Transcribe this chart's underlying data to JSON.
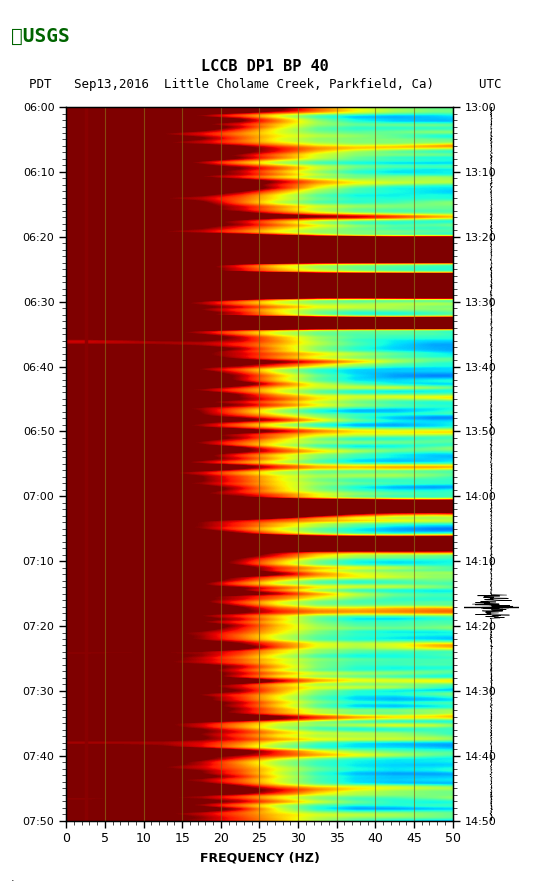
{
  "title_line1": "LCCB DP1 BP 40",
  "title_line2": "PDT   Sep13,2016  Little Cholame Creek, Parkfield, Ca)      UTC",
  "xlabel": "FREQUENCY (HZ)",
  "ylabel_left": "PDT",
  "ylabel_right": "UTC",
  "freq_min": 0,
  "freq_max": 50,
  "freq_ticks": [
    0,
    5,
    10,
    15,
    20,
    25,
    30,
    35,
    40,
    45,
    50
  ],
  "time_start_pdt": "06:00",
  "time_end_pdt": "07:50",
  "time_start_utc": "13:00",
  "time_end_utc": "14:50",
  "pdt_labels": [
    "06:00",
    "06:10",
    "06:20",
    "06:30",
    "06:40",
    "06:50",
    "07:00",
    "07:10",
    "07:20",
    "07:30",
    "07:40",
    "07:50"
  ],
  "utc_labels": [
    "13:00",
    "13:10",
    "13:20",
    "13:30",
    "13:40",
    "13:50",
    "14:00",
    "14:10",
    "14:20",
    "14:30",
    "14:40",
    "14:50"
  ],
  "n_time": 600,
  "n_freq": 500,
  "background_color": "#ffffff",
  "spectrogram_bg": "#00008B",
  "vertical_line_color": "#8B0000",
  "grid_line_color": "#8B6914",
  "colormap": "jet",
  "usgs_logo_color": "#006400",
  "fig_width": 5.52,
  "fig_height": 8.92
}
